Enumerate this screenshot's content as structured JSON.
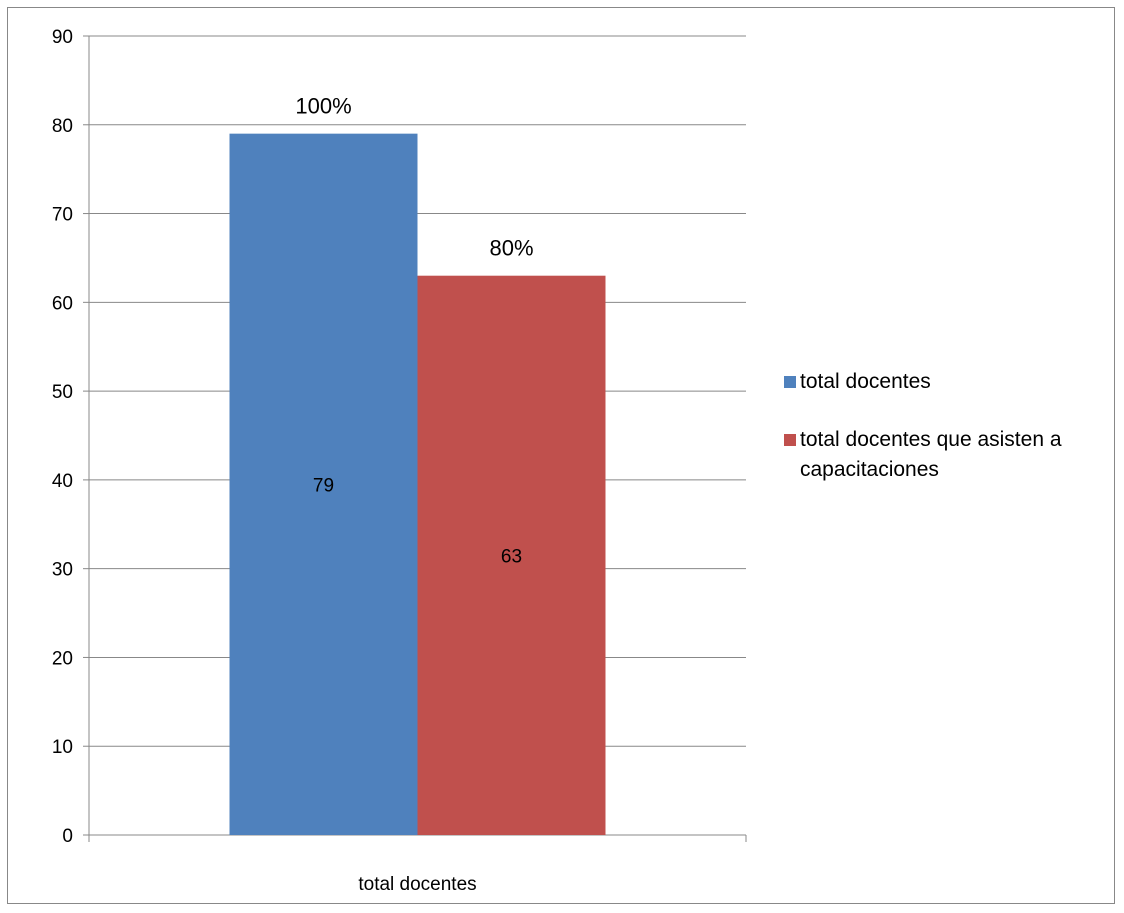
{
  "chart_data": {
    "type": "bar",
    "categories": [
      "total docentes"
    ],
    "series": [
      {
        "name": "total docentes",
        "values": [
          79
        ],
        "label": "100%",
        "color": "#4F81BD"
      },
      {
        "name": "total docentes que asisten a capacitaciones",
        "values": [
          63
        ],
        "label": "80%",
        "color": "#C0504D"
      }
    ],
    "ylim": [
      0,
      90
    ],
    "yticks": [
      0,
      10,
      20,
      30,
      40,
      50,
      60,
      70,
      80,
      90
    ],
    "grid": true,
    "legend_position": "right"
  }
}
